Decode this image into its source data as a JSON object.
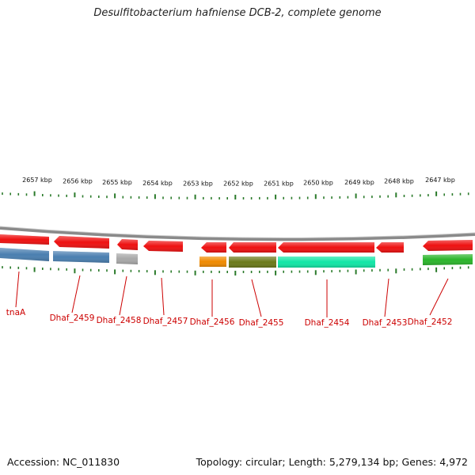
{
  "header": {
    "title": "Desulfitobacterium hafniense DCB-2, complete genome"
  },
  "footer": {
    "accession": "Accession: NC_011830",
    "stats": "Topology: circular; Length: 5,279,134 bp; Genes: 4,972"
  },
  "ruler": {
    "unit": "kbp",
    "labels": [
      "2657 kbp",
      "2656 kbp",
      "2655 kbp",
      "2654 kbp",
      "2653 kbp",
      "2652 kbp",
      "2651 kbp",
      "2650 kbp",
      "2649 kbp",
      "2648 kbp",
      "2647 kbp"
    ]
  },
  "features": {
    "colors": {
      "red": "#ee1111",
      "blue": "#4a7fb0",
      "gray": "#a8a8a8",
      "orange": "#f08a00",
      "olive": "#6b7a1a",
      "teal": "#11e6a6",
      "green": "#2ab52a",
      "label": "#cc0000",
      "tick": "#2a7a2a",
      "backbone": "#8a8a8a"
    },
    "genes": [
      {
        "label": "tnaA",
        "type": "CDS"
      },
      {
        "label": "Dhaf_2459",
        "type": "CDS"
      },
      {
        "label": "Dhaf_2458",
        "type": "CDS"
      },
      {
        "label": "Dhaf_2457",
        "type": "CDS"
      },
      {
        "label": "Dhaf_2456",
        "type": "CDS"
      },
      {
        "label": "Dhaf_2455",
        "type": "CDS"
      },
      {
        "label": "Dhaf_2454",
        "type": "CDS"
      },
      {
        "label": "Dhaf_2453",
        "type": "CDS"
      },
      {
        "label": "Dhaf_2452",
        "type": "CDS"
      }
    ]
  }
}
